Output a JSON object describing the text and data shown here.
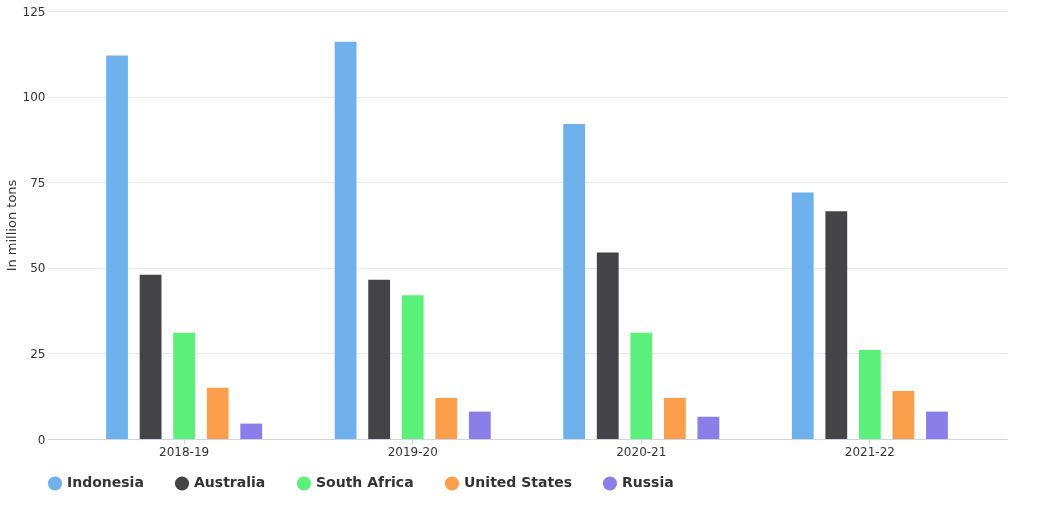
{
  "chart_data": {
    "type": "bar",
    "ylabel": "In million tons",
    "categories": [
      "2018-19",
      "2019-20",
      "2020-21",
      "2021-22"
    ],
    "series": [
      {
        "name": "Indonesia",
        "color": "#6fb1ec",
        "values": [
          112,
          116,
          92,
          72
        ]
      },
      {
        "name": "Australia",
        "color": "#434348",
        "values": [
          48,
          46.5,
          54.5,
          66.5
        ]
      },
      {
        "name": "South Africa",
        "color": "#5bf07a",
        "values": [
          31,
          42,
          31,
          26
        ]
      },
      {
        "name": "United States",
        "color": "#fb9f4d",
        "values": [
          15,
          12,
          12,
          14
        ]
      },
      {
        "name": "Russia",
        "color": "#8a7ee8",
        "values": [
          4.5,
          8,
          6.5,
          8
        ]
      }
    ],
    "ylim": [
      0,
      125
    ],
    "yticks": [
      0,
      25,
      50,
      75,
      100,
      125
    ],
    "grid": "y",
    "legend": "bottom"
  }
}
